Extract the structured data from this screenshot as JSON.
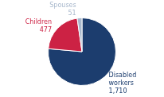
{
  "chart_data": {
    "type": "pie",
    "categories": [
      "Disabled\nworkers",
      "Children",
      "Spouses"
    ],
    "values": [
      1710,
      477,
      51
    ],
    "value_labels": [
      "1,710",
      "477",
      "51"
    ],
    "colors": [
      "#1c3d6e",
      "#cc2244",
      "#a8b8cc"
    ],
    "data_labels": true
  }
}
